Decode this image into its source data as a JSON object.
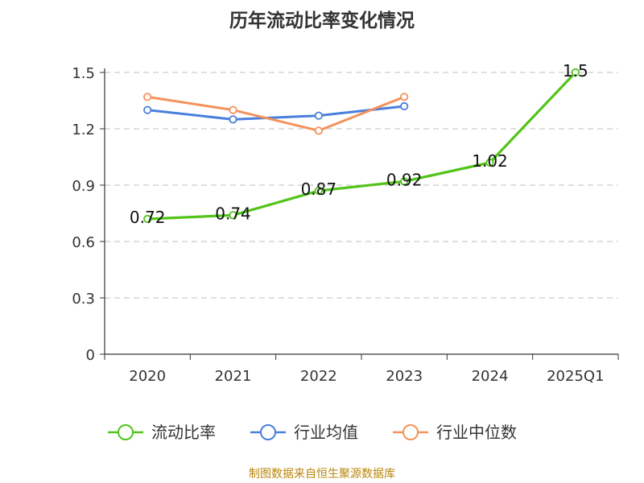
{
  "chart_data": {
    "type": "line",
    "title": "历年流动比率变化情况",
    "categories": [
      "2020",
      "2021",
      "2022",
      "2023",
      "2024",
      "2025Q1"
    ],
    "y_ticks": [
      "0",
      "0.3",
      "0.6",
      "0.9",
      "1.2",
      "1.5"
    ],
    "ylim": [
      0,
      1.5
    ],
    "grid": true,
    "legend_position": "bottom",
    "series": [
      {
        "name": "流动比率",
        "values": [
          0.72,
          0.74,
          0.87,
          0.92,
          1.02,
          1.5
        ],
        "color": "#52c41a",
        "data_labels": [
          "0.72",
          "0.74",
          "0.87",
          "0.92",
          "1.02",
          "1.5"
        ]
      },
      {
        "name": "行业均值",
        "values": [
          1.3,
          1.25,
          1.27,
          1.32,
          null,
          null
        ],
        "color": "#4a7fdc"
      },
      {
        "name": "行业中位数",
        "values": [
          1.37,
          1.3,
          1.19,
          1.37,
          null,
          null
        ],
        "color": "#f4925a"
      }
    ]
  },
  "source_note": "制图数据来自恒生聚源数据库"
}
